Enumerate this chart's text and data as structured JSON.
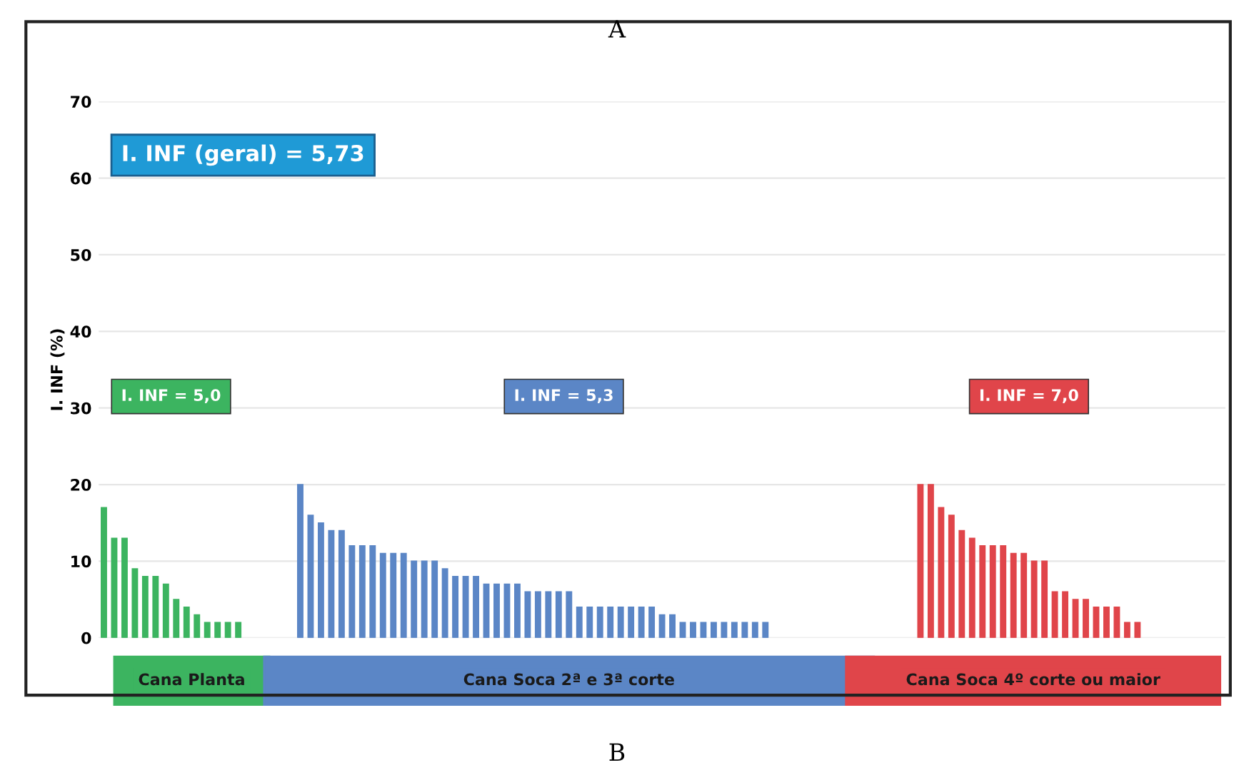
{
  "chart_data": {
    "type": "bar",
    "title": "A",
    "ylabel": "I. INF (%)",
    "categories": [
      null,
      null,
      null,
      null,
      null,
      null,
      null,
      null,
      null,
      null,
      null,
      null,
      null,
      null,
      null,
      null,
      null,
      null,
      null,
      null,
      null,
      null,
      null,
      null,
      null,
      null,
      null,
      null,
      null,
      null,
      null,
      null,
      null,
      null,
      null,
      null,
      null,
      null,
      null,
      null,
      null,
      null,
      null,
      null,
      null,
      null,
      null,
      null,
      null,
      null,
      null,
      null,
      null,
      null,
      null,
      null,
      null,
      null,
      null,
      null,
      null,
      null,
      null,
      null,
      null,
      null,
      null,
      null,
      null,
      null,
      null,
      null,
      null,
      null,
      null,
      null,
      null,
      null,
      null,
      null,
      null,
      null,
      null,
      null,
      null,
      null,
      null,
      null,
      null,
      null,
      null,
      null,
      null,
      null,
      null,
      null,
      null,
      null,
      null,
      null,
      null,
      null,
      null,
      null,
      null,
      null,
      null,
      null,
      null
    ],
    "series": [
      {
        "name": "Cana Planta",
        "color": "#3cb460",
        "values": [
          17,
          13,
          13,
          9,
          8,
          8,
          7,
          5,
          4,
          3,
          2,
          2,
          2,
          2,
          null,
          null,
          null,
          null,
          null,
          null,
          null,
          null,
          null,
          null,
          null,
          null,
          null,
          null,
          null,
          null,
          null,
          null,
          null,
          null,
          null,
          null,
          null,
          null,
          null,
          null,
          null,
          null,
          null,
          null,
          null,
          null,
          null,
          null,
          null,
          null,
          null,
          null,
          null,
          null,
          null,
          null,
          null,
          null,
          null,
          null,
          null,
          null,
          null,
          null,
          null,
          null,
          null,
          null,
          null,
          null,
          null,
          null,
          null,
          null,
          null,
          null,
          null,
          null,
          null,
          null,
          null,
          null,
          null,
          null,
          null,
          null,
          null,
          null,
          null,
          null,
          null,
          null,
          null,
          null,
          null,
          null,
          null,
          null,
          null,
          null,
          null,
          null,
          null,
          null,
          null,
          null,
          null,
          null,
          null
        ]
      },
      {
        "name": "Cana Soca 2ª e 3ª corte",
        "color": "#5b86c6",
        "values": [
          null,
          null,
          null,
          null,
          null,
          null,
          null,
          null,
          null,
          null,
          null,
          null,
          null,
          null,
          null,
          null,
          null,
          null,
          null,
          20,
          16,
          15,
          14,
          14,
          12,
          12,
          12,
          11,
          11,
          11,
          10,
          10,
          10,
          9,
          8,
          8,
          8,
          7,
          7,
          7,
          7,
          6,
          6,
          6,
          6,
          6,
          4,
          4,
          4,
          4,
          4,
          4,
          4,
          4,
          3,
          3,
          2,
          2,
          2,
          2,
          2,
          2,
          2,
          2,
          2,
          null,
          null,
          null,
          null,
          null,
          null,
          null,
          null,
          null,
          null,
          null,
          null,
          null,
          null,
          null,
          null,
          null,
          null,
          null,
          null,
          null,
          null,
          null,
          null,
          null,
          null,
          null,
          null,
          null,
          null,
          null,
          null,
          null,
          null,
          null,
          null,
          null,
          null,
          null,
          null,
          null,
          null,
          null,
          null
        ]
      },
      {
        "name": "Cana Soca 4º corte ou maior",
        "color": "#e0454a",
        "values": [
          null,
          null,
          null,
          null,
          null,
          null,
          null,
          null,
          null,
          null,
          null,
          null,
          null,
          null,
          null,
          null,
          null,
          null,
          null,
          null,
          null,
          null,
          null,
          null,
          null,
          null,
          null,
          null,
          null,
          null,
          null,
          null,
          null,
          null,
          null,
          null,
          null,
          null,
          null,
          null,
          null,
          null,
          null,
          null,
          null,
          null,
          null,
          null,
          null,
          null,
          null,
          null,
          null,
          null,
          null,
          null,
          null,
          null,
          null,
          null,
          null,
          null,
          null,
          null,
          null,
          null,
          null,
          null,
          null,
          null,
          null,
          null,
          null,
          null,
          null,
          null,
          null,
          null,
          null,
          20,
          20,
          17,
          16,
          14,
          13,
          12,
          12,
          12,
          11,
          11,
          10,
          10,
          6,
          6,
          5,
          5,
          4,
          4,
          4,
          2,
          2,
          null,
          null,
          null,
          null,
          null,
          null,
          null,
          null
        ]
      }
    ],
    "ylim": [
      0,
      70
    ],
    "yticks": [
      0,
      10,
      20,
      30,
      40,
      50,
      60,
      70
    ],
    "grid": "y",
    "annotations": [
      "I. INF (geral) = 5,73",
      "I. INF = 5,0",
      "I. INF = 5,3",
      "I. INF = 7,0",
      "B"
    ]
  }
}
